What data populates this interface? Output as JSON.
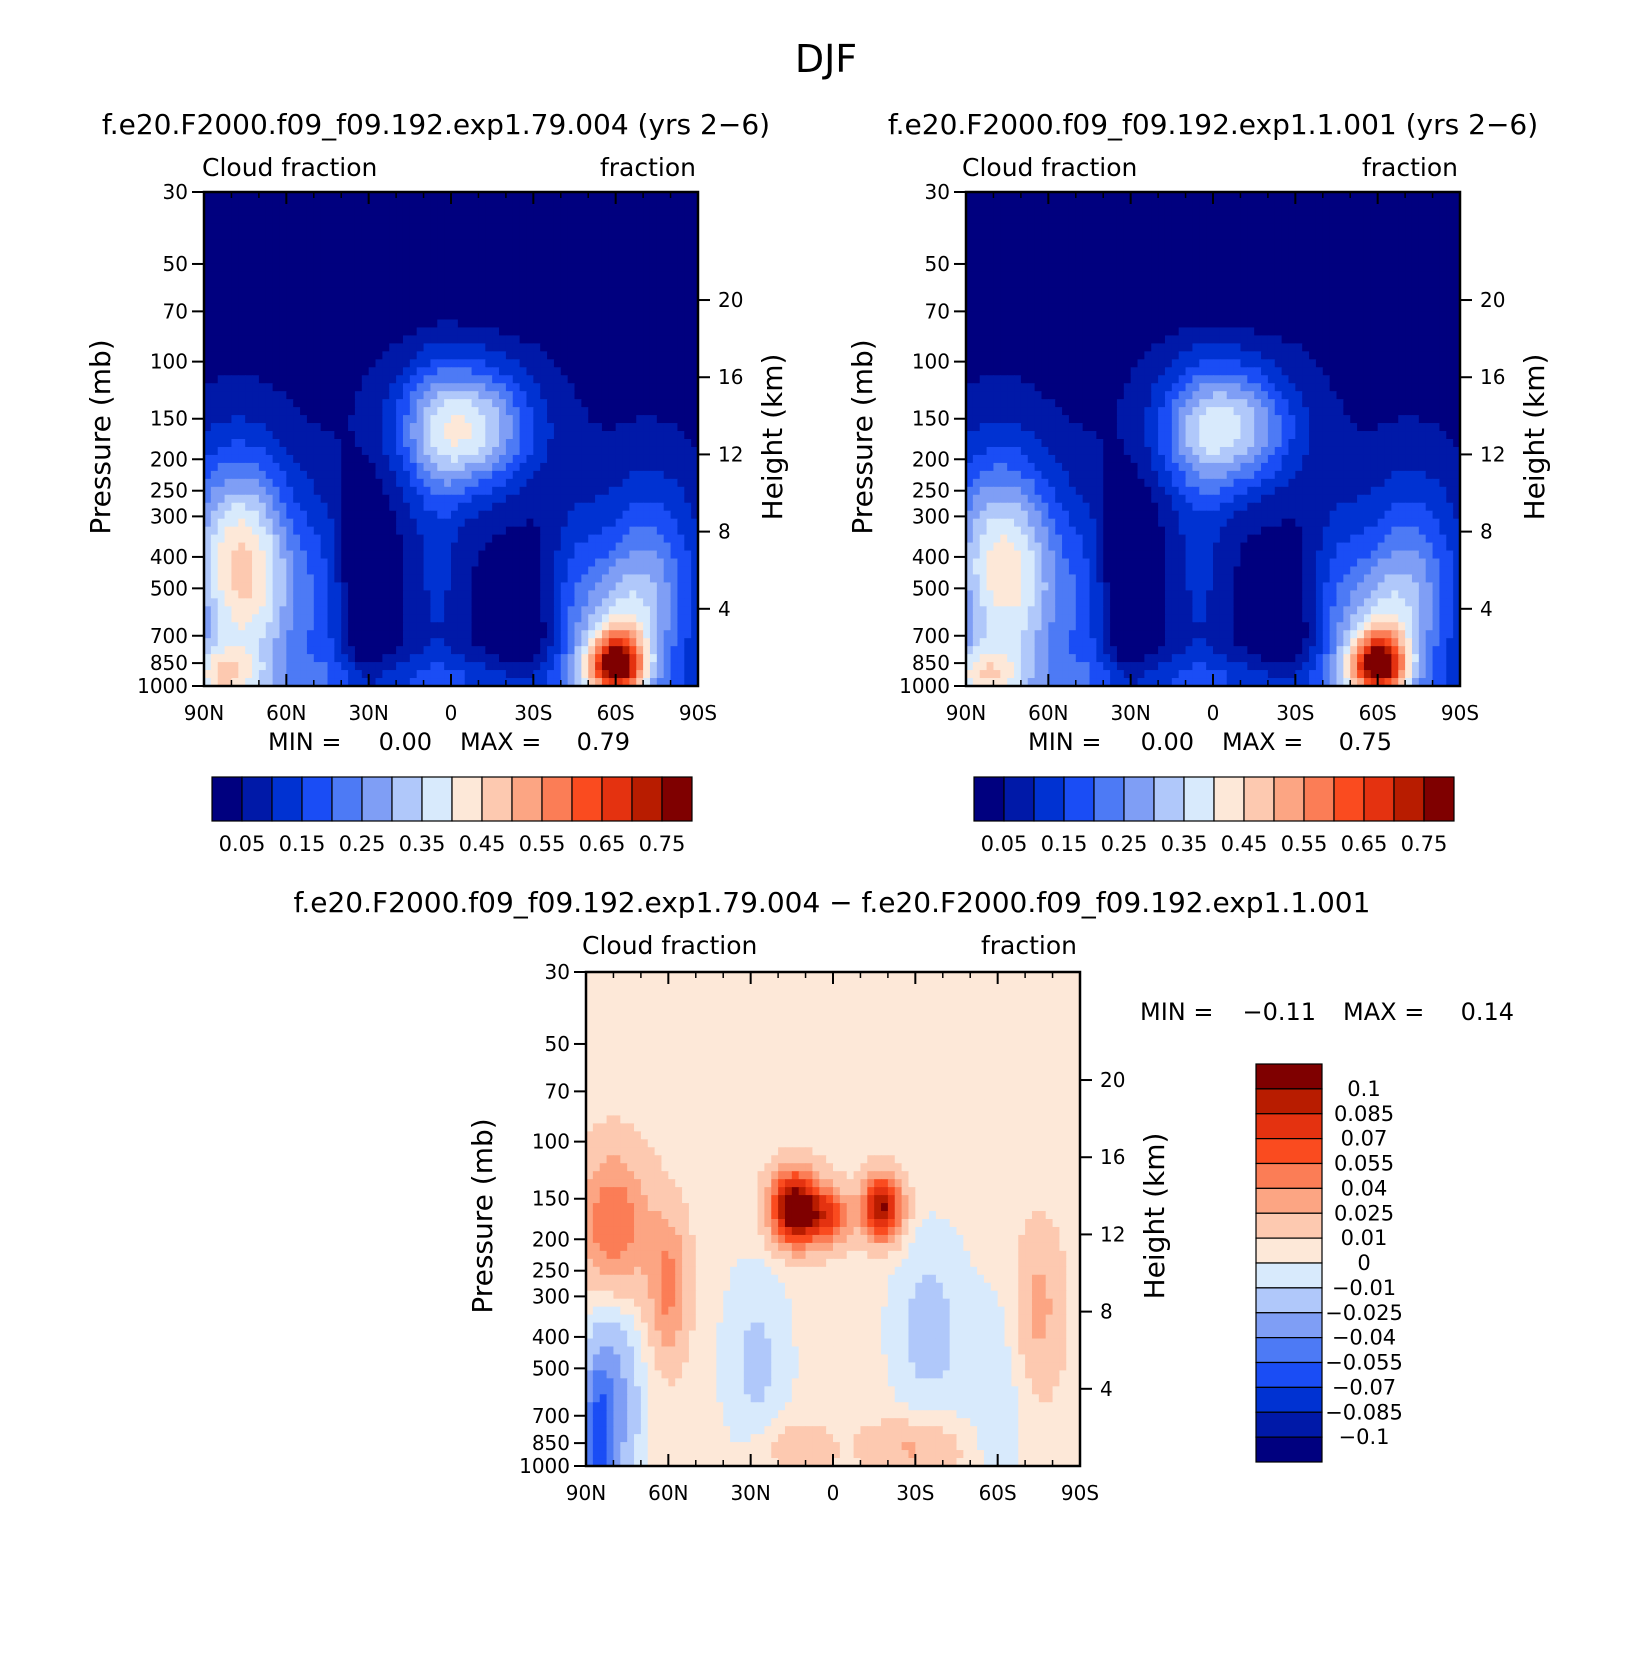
{
  "page_title": "DJF",
  "colors": {
    "abs_levels": [
      "#00007f",
      "#0019a8",
      "#0032d2",
      "#1a4df5",
      "#4d7af5",
      "#7f9ef5",
      "#b0c8fa",
      "#d8eafc",
      "#fde8d8",
      "#fdc9b0",
      "#fca583",
      "#fb7d56",
      "#fa4b1f",
      "#e43210",
      "#b81c00",
      "#7f0000"
    ],
    "diff_levels": [
      "#00007f",
      "#0019a8",
      "#0032d2",
      "#1a4df5",
      "#4d7af5",
      "#7f9ef5",
      "#b0c8fa",
      "#d8eafc",
      "#fde8d8",
      "#fdc9b0",
      "#fca583",
      "#fb7d56",
      "#fa4b1f",
      "#e43210",
      "#b81c00",
      "#7f0000"
    ]
  },
  "chart_data": [
    {
      "type": "heatmap",
      "title": "f.e20.F2000.f09_f09.192.exp1.79.004 (yrs 2−6)",
      "left_label": "Cloud fraction",
      "right_label": "fraction",
      "ylabel": "Pressure (mb)",
      "y2label": "Height (km)",
      "x_ticks": [
        "90N",
        "60N",
        "30N",
        "0",
        "30S",
        "60S",
        "90S"
      ],
      "y_ticks": [
        "30",
        "50",
        "70",
        "100",
        "150",
        "200",
        "250",
        "300",
        "400",
        "500",
        "700",
        "850",
        "1000"
      ],
      "y2_ticks": [
        "20",
        "16",
        "12",
        "8",
        "4"
      ],
      "min_label": "MIN =",
      "min_value": "0.00",
      "max_label": "MAX =",
      "max_value": "0.79",
      "colorbar_labels": [
        "0.05",
        "0.15",
        "0.25",
        "0.35",
        "0.45",
        "0.55",
        "0.65",
        "0.75"
      ],
      "min": 0.0,
      "max": 0.79
    },
    {
      "type": "heatmap",
      "title": "f.e20.F2000.f09_f09.192.exp1.1.001 (yrs 2−6)",
      "left_label": "Cloud fraction",
      "right_label": "fraction",
      "ylabel": "Pressure (mb)",
      "y2label": "Height (km)",
      "x_ticks": [
        "90N",
        "60N",
        "30N",
        "0",
        "30S",
        "60S",
        "90S"
      ],
      "y_ticks": [
        "30",
        "50",
        "70",
        "100",
        "150",
        "200",
        "250",
        "300",
        "400",
        "500",
        "700",
        "850",
        "1000"
      ],
      "y2_ticks": [
        "20",
        "16",
        "12",
        "8",
        "4"
      ],
      "min_label": "MIN =",
      "min_value": "0.00",
      "max_label": "MAX =",
      "max_value": "0.75",
      "colorbar_labels": [
        "0.05",
        "0.15",
        "0.25",
        "0.35",
        "0.45",
        "0.55",
        "0.65",
        "0.75"
      ],
      "min": 0.0,
      "max": 0.75
    },
    {
      "type": "heatmap",
      "title": "f.e20.F2000.f09_f09.192.exp1.79.004 − f.e20.F2000.f09_f09.192.exp1.1.001",
      "left_label": "Cloud fraction",
      "right_label": "fraction",
      "ylabel": "Pressure (mb)",
      "y2label": "Height (km)",
      "x_ticks": [
        "90N",
        "60N",
        "30N",
        "0",
        "30S",
        "60S",
        "90S"
      ],
      "y_ticks": [
        "30",
        "50",
        "70",
        "100",
        "150",
        "200",
        "250",
        "300",
        "400",
        "500",
        "700",
        "850",
        "1000"
      ],
      "y2_ticks": [
        "20",
        "16",
        "12",
        "8",
        "4"
      ],
      "min_label": "MIN =",
      "min_value": "−0.11",
      "max_label": "MAX =",
      "max_value": "0.14",
      "colorbar_labels": [
        "0.1",
        "0.085",
        "0.07",
        "0.055",
        "0.04",
        "0.025",
        "0.01",
        "0",
        "−0.01",
        "−0.025",
        "−0.04",
        "−0.055",
        "−0.07",
        "−0.085",
        "−0.1"
      ],
      "min": -0.11,
      "max": 0.14
    }
  ]
}
